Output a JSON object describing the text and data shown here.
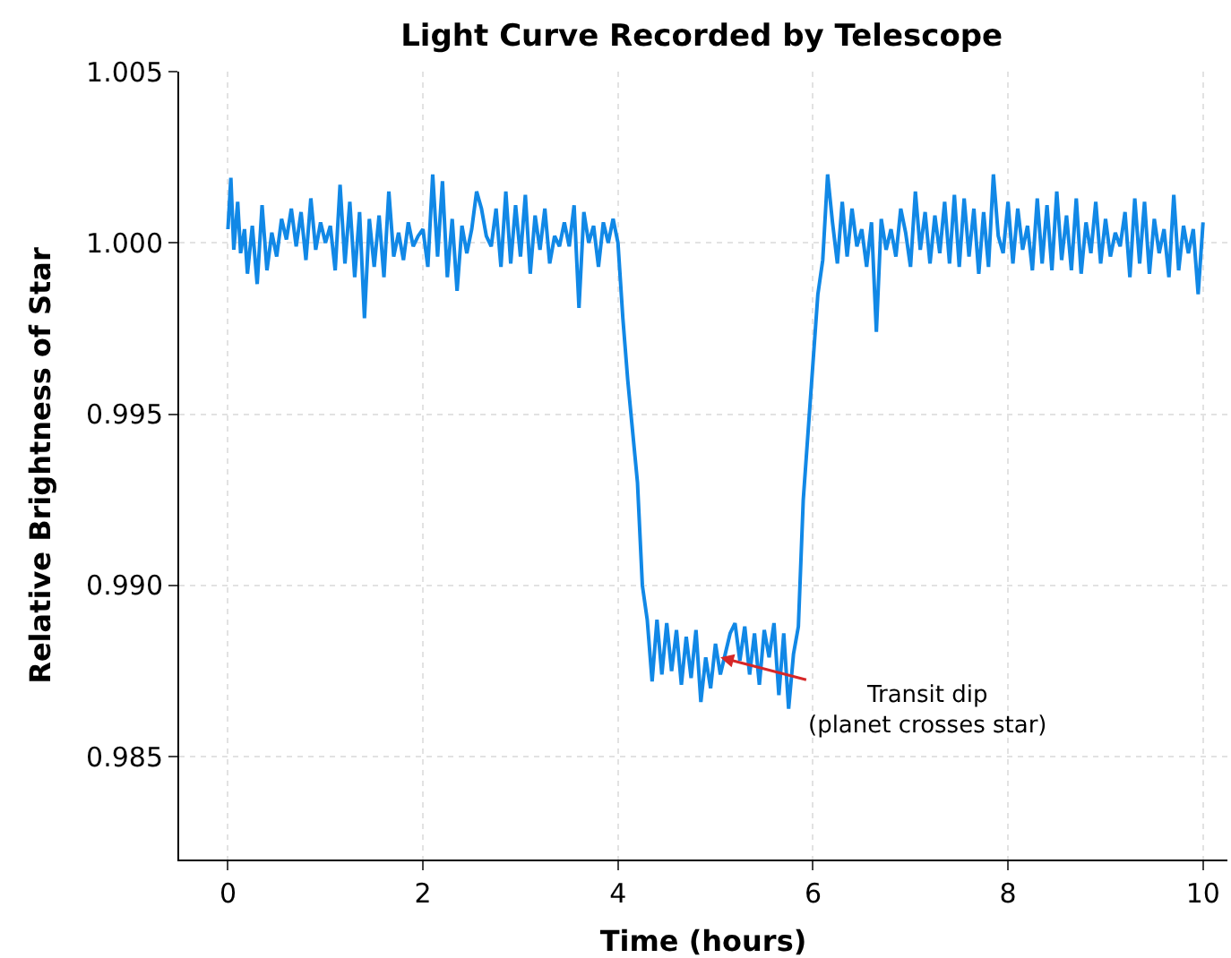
{
  "chart_data": {
    "type": "line",
    "title": "Light Curve Recorded by Telescope",
    "xlabel": "Time (hours)",
    "ylabel": "Relative Brightness of Star",
    "x": [
      0,
      0.03,
      0.06,
      0.1,
      0.13,
      0.17,
      0.2,
      0.25,
      0.3,
      0.35,
      0.4,
      0.45,
      0.5,
      0.55,
      0.6,
      0.65,
      0.7,
      0.75,
      0.8,
      0.85,
      0.9,
      0.95,
      1.0,
      1.05,
      1.1,
      1.15,
      1.2,
      1.25,
      1.3,
      1.35,
      1.4,
      1.45,
      1.5,
      1.55,
      1.6,
      1.65,
      1.7,
      1.75,
      1.8,
      1.85,
      1.9,
      1.95,
      2.0,
      2.05,
      2.1,
      2.15,
      2.2,
      2.25,
      2.3,
      2.35,
      2.4,
      2.45,
      2.5,
      2.55,
      2.6,
      2.65,
      2.7,
      2.75,
      2.8,
      2.85,
      2.9,
      2.95,
      3.0,
      3.05,
      3.1,
      3.15,
      3.2,
      3.25,
      3.3,
      3.35,
      3.4,
      3.45,
      3.5,
      3.55,
      3.6,
      3.65,
      3.7,
      3.75,
      3.8,
      3.85,
      3.9,
      3.95,
      4.0,
      4.05,
      4.1,
      4.15,
      4.2,
      4.25,
      4.3,
      4.35,
      4.4,
      4.45,
      4.5,
      4.55,
      4.6,
      4.65,
      4.7,
      4.75,
      4.8,
      4.85,
      4.9,
      4.95,
      5.0,
      5.05,
      5.1,
      5.15,
      5.2,
      5.25,
      5.3,
      5.35,
      5.4,
      5.45,
      5.5,
      5.55,
      5.6,
      5.65,
      5.7,
      5.75,
      5.8,
      5.85,
      5.9,
      5.95,
      6.0,
      6.05,
      6.1,
      6.15,
      6.2,
      6.25,
      6.3,
      6.35,
      6.4,
      6.45,
      6.5,
      6.55,
      6.6,
      6.65,
      6.7,
      6.75,
      6.8,
      6.85,
      6.9,
      6.95,
      7.0,
      7.05,
      7.1,
      7.15,
      7.2,
      7.25,
      7.3,
      7.35,
      7.4,
      7.45,
      7.5,
      7.55,
      7.6,
      7.65,
      7.7,
      7.75,
      7.8,
      7.85,
      7.9,
      7.95,
      8.0,
      8.05,
      8.1,
      8.15,
      8.2,
      8.25,
      8.3,
      8.35,
      8.4,
      8.45,
      8.5,
      8.55,
      8.6,
      8.65,
      8.7,
      8.75,
      8.8,
      8.85,
      8.9,
      8.95,
      9.0,
      9.05,
      9.1,
      9.15,
      9.2,
      9.25,
      9.3,
      9.35,
      9.4,
      9.45,
      9.5,
      9.55,
      9.6,
      9.65,
      9.7,
      9.75,
      9.8,
      9.85,
      9.9,
      9.95,
      10.0
    ],
    "series": [
      {
        "color": "#1188e6",
        "values": [
          1.0004,
          1.0019,
          0.9998,
          1.0012,
          0.9997,
          1.0004,
          0.9991,
          1.0005,
          0.9988,
          1.0011,
          0.9992,
          1.0003,
          0.9996,
          1.0007,
          1.0001,
          1.001,
          0.9999,
          1.0009,
          0.9995,
          1.0013,
          0.9998,
          1.0006,
          1.0,
          1.0005,
          0.9992,
          1.0017,
          0.9994,
          1.0012,
          0.999,
          1.0009,
          0.9978,
          1.0007,
          0.9993,
          1.0008,
          0.999,
          1.0015,
          0.9996,
          1.0003,
          0.9995,
          1.0006,
          0.9999,
          1.0002,
          1.0004,
          0.9993,
          1.002,
          0.9996,
          1.0018,
          0.999,
          1.0007,
          0.9986,
          1.0005,
          0.9997,
          1.0004,
          1.0015,
          1.001,
          1.0002,
          0.9999,
          1.001,
          0.9993,
          1.0015,
          0.9994,
          1.0011,
          0.9996,
          1.0014,
          0.9991,
          1.0008,
          0.9998,
          1.001,
          0.9994,
          1.0002,
          0.9999,
          1.0006,
          0.9999,
          1.0011,
          0.9981,
          1.0009,
          1.0,
          1.0005,
          0.9993,
          1.0006,
          1.0,
          1.0007,
          1.0,
          0.9978,
          0.996,
          0.9945,
          0.993,
          0.99,
          0.989,
          0.9872,
          0.989,
          0.9874,
          0.9889,
          0.9875,
          0.9887,
          0.9871,
          0.9885,
          0.9873,
          0.9887,
          0.9866,
          0.9879,
          0.987,
          0.9883,
          0.9874,
          0.988,
          0.9886,
          0.9889,
          0.9878,
          0.9888,
          0.9874,
          0.9886,
          0.9871,
          0.9887,
          0.9879,
          0.9889,
          0.9868,
          0.9886,
          0.9864,
          0.988,
          0.9888,
          0.9925,
          0.9945,
          0.9965,
          0.9985,
          0.9995,
          1.002,
          1.0006,
          0.9994,
          1.0012,
          0.9996,
          1.001,
          0.9999,
          1.0004,
          0.9993,
          1.0006,
          0.9974,
          1.0007,
          0.9998,
          1.0004,
          0.9996,
          1.001,
          1.0003,
          0.9993,
          1.0015,
          0.9998,
          1.0009,
          0.9994,
          1.0008,
          0.9997,
          1.0012,
          0.9994,
          1.0014,
          0.9993,
          1.0013,
          0.9996,
          1.001,
          0.9991,
          1.0009,
          0.9993,
          1.002,
          1.0002,
          0.9997,
          1.0012,
          0.9994,
          1.001,
          0.9998,
          1.0005,
          0.9992,
          1.0013,
          0.9994,
          1.0011,
          0.9992,
          1.0015,
          0.9995,
          1.0008,
          0.9992,
          1.0013,
          0.9991,
          1.0006,
          0.9997,
          1.0012,
          0.9994,
          1.0007,
          0.9996,
          1.0003,
          0.9999,
          1.0009,
          0.999,
          1.0013,
          0.9994,
          1.0012,
          0.9991,
          1.0007,
          0.9997,
          1.0004,
          0.999,
          1.0014,
          0.9992,
          1.0005,
          0.9997,
          1.0004,
          0.9985,
          1.0006
        ]
      }
    ],
    "xlim": [
      -0.5,
      10.25
    ],
    "xticks": [
      0,
      2,
      4,
      6,
      8,
      10
    ],
    "ylim": [
      0.982,
      1.005
    ],
    "yticks": [
      0.985,
      {
        "value": 0.99,
        "label": "0.990"
      },
      0.995,
      {
        "value": 1.0,
        "label": "1.000"
      },
      1.005
    ],
    "annotations": [
      {
        "text": "Transit dip\n(planet crosses star)",
        "x": 5.05,
        "y": 0.9879
      }
    ],
    "grid": true,
    "marker": "none",
    "line_style": "solid"
  }
}
